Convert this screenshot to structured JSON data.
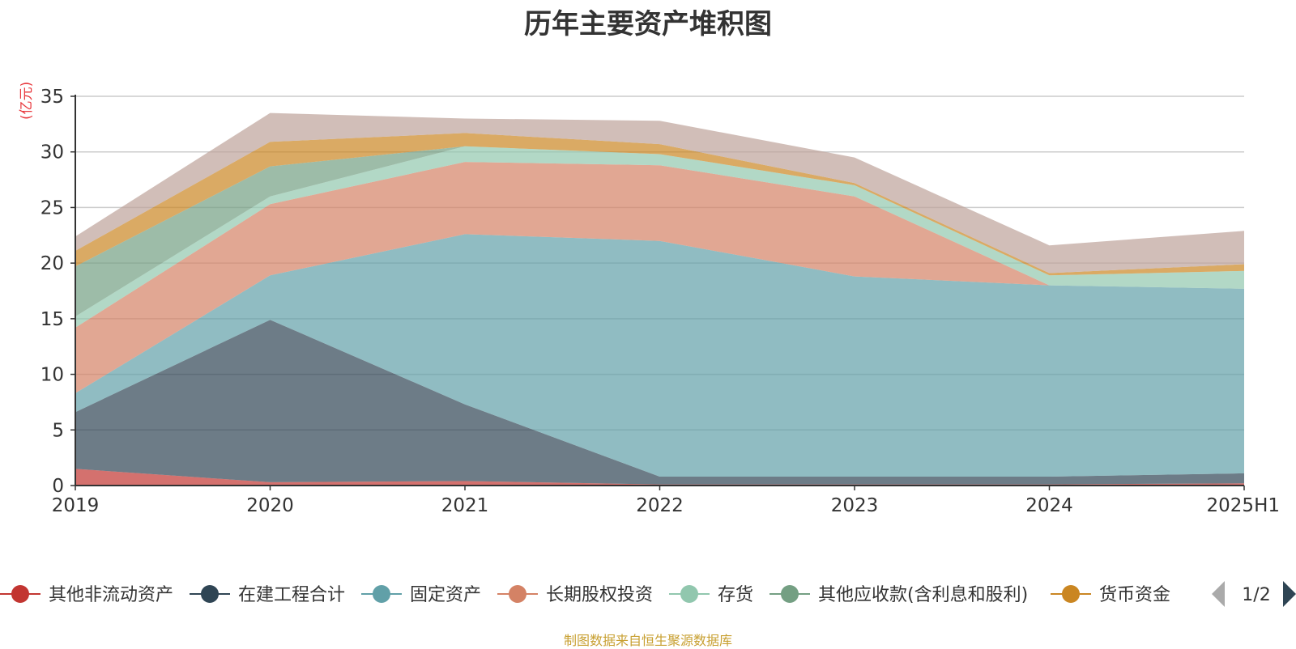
{
  "chart_data": {
    "type": "area",
    "stacked": true,
    "title": "历年主要资产堆积图",
    "unit_label": "(亿元)",
    "x": [
      "2019",
      "2020",
      "2021",
      "2022",
      "2023",
      "2024",
      "2025H1"
    ],
    "ylim": [
      0,
      35
    ],
    "yticks": [
      0,
      5,
      10,
      15,
      20,
      25,
      30,
      35
    ],
    "grid": true,
    "legend_position": "bottom",
    "legend_page": "1/2",
    "series": [
      {
        "name": "其他非流动资产",
        "color": "#c23531",
        "values": [
          1.5,
          0.3,
          0.4,
          0.1,
          0.1,
          0.1,
          0.2
        ]
      },
      {
        "name": "在建工程合计",
        "color": "#2f4554",
        "values": [
          5.1,
          14.6,
          6.9,
          0.7,
          0.7,
          0.7,
          0.9
        ]
      },
      {
        "name": "固定资产",
        "color": "#61a0a8",
        "values": [
          1.7,
          4.0,
          15.3,
          21.2,
          18.0,
          17.2,
          16.6
        ]
      },
      {
        "name": "长期股权投资",
        "color": "#d48265",
        "values": [
          5.9,
          6.4,
          6.5,
          6.8,
          7.2,
          0.0,
          0.0
        ]
      },
      {
        "name": "存货",
        "color": "#91c7ae",
        "values": [
          1.0,
          0.7,
          1.4,
          1.0,
          1.0,
          0.9,
          1.6
        ]
      },
      {
        "name": "其他应收款(含利息和股利)",
        "color": "#749f83",
        "values": [
          4.5,
          2.7,
          0.0,
          0.0,
          0.0,
          0.0,
          0.0
        ]
      },
      {
        "name": "货币资金",
        "color": "#ca8622",
        "values": [
          1.4,
          2.2,
          1.2,
          0.9,
          0.2,
          0.2,
          0.6
        ]
      },
      {
        "name": "",
        "color": "#bda29a",
        "values": [
          1.3,
          2.6,
          1.3,
          2.1,
          2.3,
          2.5,
          3.0
        ]
      }
    ],
    "source_note": "制图数据来自恒生聚源数据库"
  }
}
